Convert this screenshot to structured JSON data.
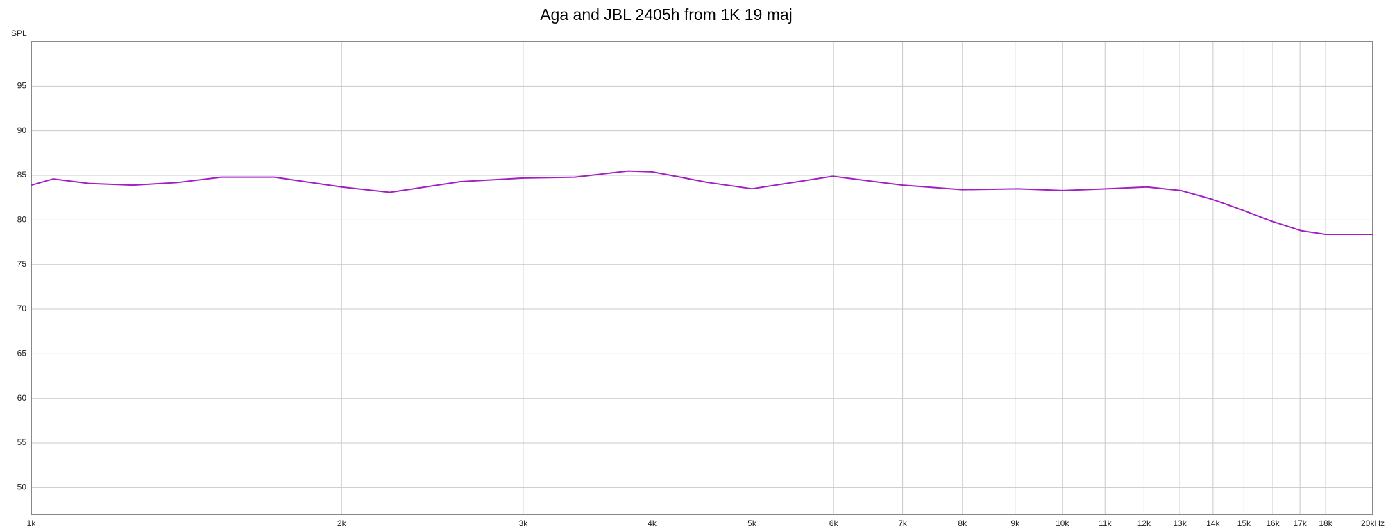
{
  "chart_data": {
    "type": "line",
    "title": "Aga and JBL 2405h from 1K 19 maj",
    "y_label": "SPL",
    "log_x": true,
    "grid": true,
    "xlim": [
      1000,
      20000
    ],
    "ylim": [
      47,
      100
    ],
    "xticks": [
      {
        "value": 1000,
        "label": "1k"
      },
      {
        "value": 2000,
        "label": "2k"
      },
      {
        "value": 3000,
        "label": "3k"
      },
      {
        "value": 4000,
        "label": "4k"
      },
      {
        "value": 5000,
        "label": "5k"
      },
      {
        "value": 6000,
        "label": "6k"
      },
      {
        "value": 7000,
        "label": "7k"
      },
      {
        "value": 8000,
        "label": "8k"
      },
      {
        "value": 9000,
        "label": "9k"
      },
      {
        "value": 10000,
        "label": "10k"
      },
      {
        "value": 11000,
        "label": "11k"
      },
      {
        "value": 12000,
        "label": "12k"
      },
      {
        "value": 13000,
        "label": "13k"
      },
      {
        "value": 14000,
        "label": "14k"
      },
      {
        "value": 15000,
        "label": "15k"
      },
      {
        "value": 16000,
        "label": "16k"
      },
      {
        "value": 17000,
        "label": "17k"
      },
      {
        "value": 18000,
        "label": "18k"
      },
      {
        "value": 20000,
        "label": "20kHz"
      }
    ],
    "yticks": [
      50,
      55,
      60,
      65,
      70,
      75,
      80,
      85,
      90,
      95
    ],
    "series": [
      {
        "color": "#a21fc4",
        "x": [
          1000,
          1050,
          1137,
          1255,
          1386,
          1529,
          1721,
          2000,
          2227,
          2608,
          3000,
          3370,
          3794,
          4000,
          4536,
          5000,
          5990,
          7002,
          8000,
          9070,
          10000,
          11030,
          12080,
          13030,
          13990,
          14960,
          15930,
          17050,
          17990,
          20000
        ],
        "values": [
          83.9,
          84.6,
          84.1,
          83.9,
          84.2,
          84.8,
          84.8,
          83.7,
          83.1,
          84.3,
          84.7,
          84.8,
          85.5,
          85.4,
          84.2,
          83.5,
          84.9,
          83.9,
          83.4,
          83.5,
          83.3,
          83.5,
          83.7,
          83.3,
          82.3,
          81.1,
          79.9,
          78.8,
          78.4,
          78.4
        ]
      }
    ]
  }
}
